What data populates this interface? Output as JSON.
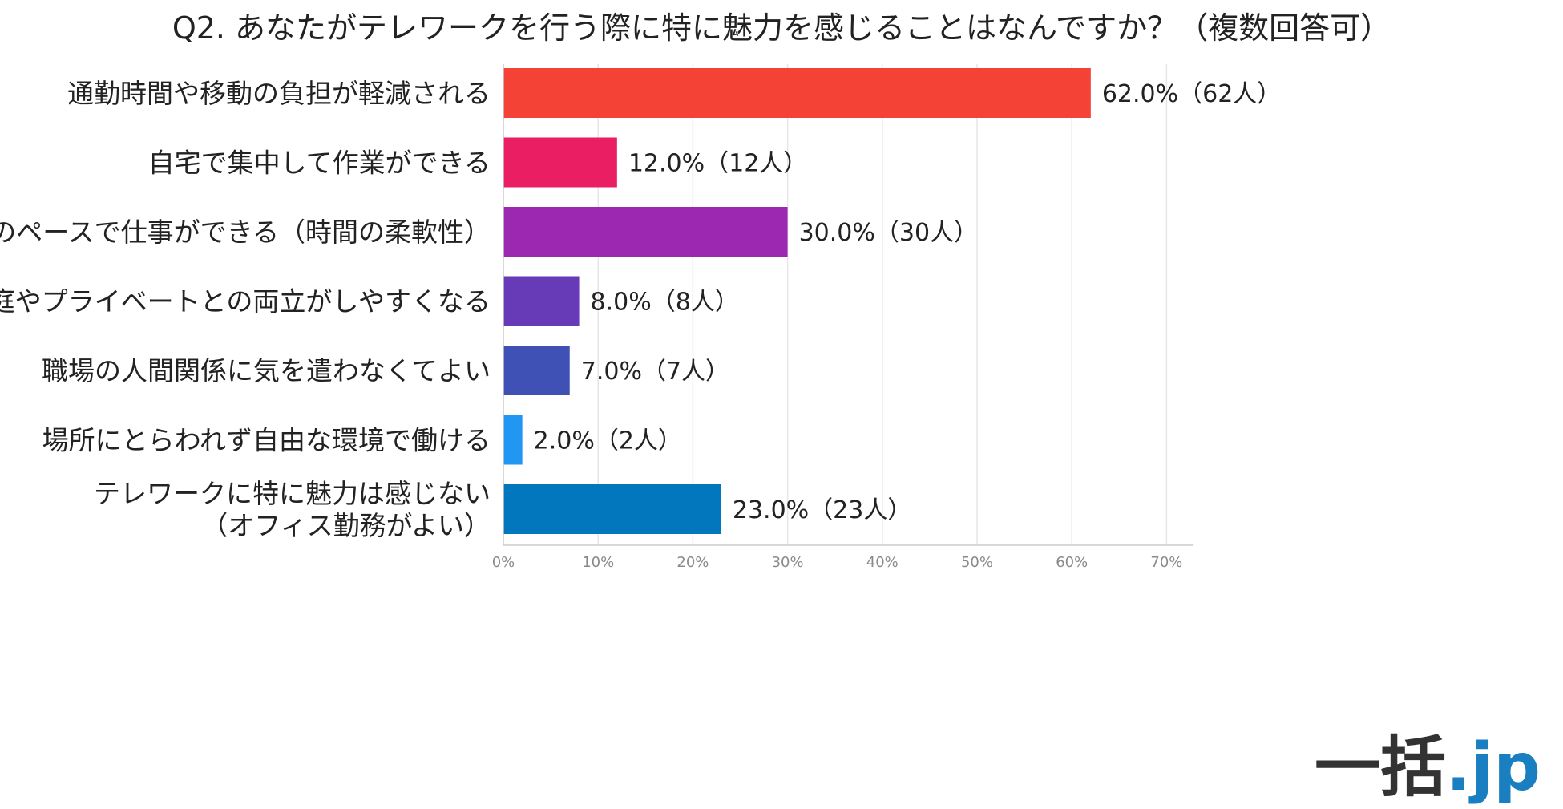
{
  "chart_data": {
    "type": "bar",
    "orientation": "horizontal",
    "title": "Q2. あなたがテレワークを行う際に特に魅力を感じることはなんですか？（複数回答可）",
    "categories": [
      [
        "通勤時間や移動の負担が軽減される"
      ],
      [
        "自宅で集中して作業ができる"
      ],
      [
        "自分のペースで仕事ができる（時間の柔軟性）"
      ],
      [
        "家庭やプライベートとの両立がしやすくなる"
      ],
      [
        "職場の人間関係に気を遣わなくてよい"
      ],
      [
        "場所にとらわれず自由な環境で働ける"
      ],
      [
        "テレワークに特に魅力は感じない",
        "（オフィス勤務がよい）"
      ]
    ],
    "values": [
      62.0,
      12.0,
      30.0,
      8.0,
      7.0,
      2.0,
      23.0
    ],
    "counts": [
      62,
      12,
      30,
      8,
      7,
      2,
      23
    ],
    "data_labels": [
      "62.0%（62人）",
      "12.0%（12人）",
      "30.0%（30人）",
      "8.0%（8人）",
      "7.0%（7人）",
      "2.0%（2人）",
      "23.0%（23人）"
    ],
    "colors": [
      "#f44336",
      "#e91e63",
      "#9c27b0",
      "#673ab7",
      "#3f51b5",
      "#2196f3",
      "#0277bd"
    ],
    "x_ticks": [
      0,
      10,
      20,
      30,
      40,
      50,
      60,
      70
    ],
    "x_tick_labels": [
      "0%",
      "10%",
      "20%",
      "30%",
      "40%",
      "50%",
      "60%",
      "70%"
    ],
    "xlim": [
      0,
      72
    ],
    "xlabel": "",
    "ylabel": "",
    "grid": true,
    "legend": false
  },
  "brand": {
    "main": "一括",
    "suffix": ".jp",
    "main_color": "#333333",
    "suffix_color": "#1a7fc1"
  }
}
